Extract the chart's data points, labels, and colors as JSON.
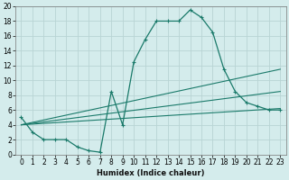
{
  "xlabel": "Humidex (Indice chaleur)",
  "bg_color": "#d4ecec",
  "grid_color": "#b8d4d4",
  "line_color": "#1a7a6a",
  "xlim": [
    -0.5,
    23.5
  ],
  "ylim": [
    0,
    20
  ],
  "xtick_vals": [
    0,
    1,
    2,
    3,
    4,
    5,
    6,
    7,
    8,
    9,
    10,
    11,
    12,
    13,
    14,
    15,
    16,
    17,
    18,
    19,
    20,
    21,
    22,
    23
  ],
  "ytick_vals": [
    0,
    2,
    4,
    6,
    8,
    10,
    12,
    14,
    16,
    18,
    20
  ],
  "series_main": {
    "x": [
      0,
      1,
      2,
      3,
      4,
      5,
      6,
      7,
      8,
      9,
      10,
      11,
      12,
      13,
      14,
      15,
      16,
      17,
      18,
      19,
      20,
      21,
      22,
      23
    ],
    "y": [
      5,
      3,
      2,
      2,
      2,
      1,
      0.5,
      0.3,
      8.5,
      4,
      12.5,
      15.5,
      18,
      18,
      18,
      19.5,
      18.5,
      16.5,
      11.5,
      8.5,
      7,
      6.5,
      6,
      6
    ]
  },
  "series_lines": [
    {
      "x": [
        0,
        23
      ],
      "y": [
        4,
        6.2
      ]
    },
    {
      "x": [
        0,
        23
      ],
      "y": [
        4,
        8.5
      ]
    },
    {
      "x": [
        0,
        23
      ],
      "y": [
        4,
        11.5
      ]
    }
  ],
  "title_fontsize": 7,
  "xlabel_fontsize": 6,
  "tick_fontsize": 5.5
}
